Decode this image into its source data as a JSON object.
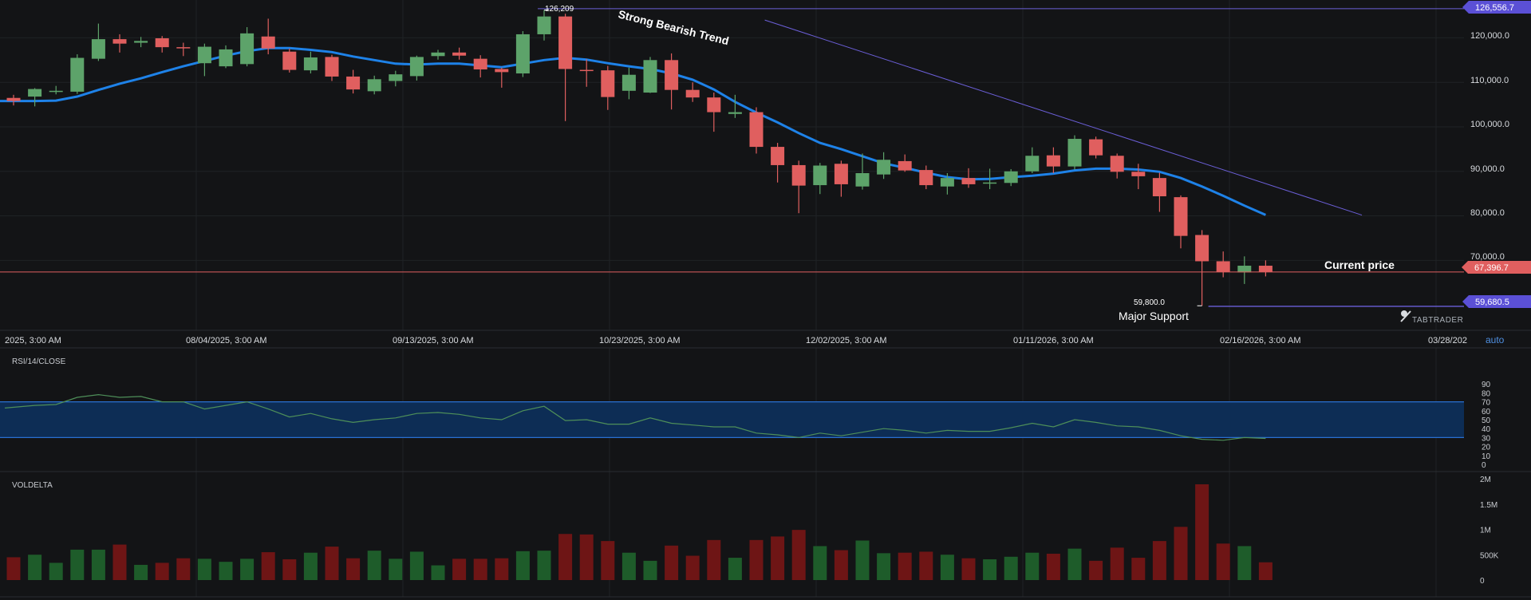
{
  "colors": {
    "background": "#131416",
    "grid": "#1f2225",
    "up": "#5da36a",
    "down": "#e05f5f",
    "ma": "#1e82e8",
    "trendline": "#6b5fd8",
    "current": "#e05f5f",
    "support": "#6b5fd8",
    "rsi_line": "#4e8f59",
    "rsi_band": "#0d2d55",
    "rsi_band_edge": "#2a6fd0",
    "vol_up": "#1e5c2a",
    "vol_down": "#6e1515"
  },
  "price_axis": {
    "ticks": [
      "120,000.0",
      "110,000.0",
      "100,000.0",
      "90,000.0",
      "80,000.0",
      "70,000.0"
    ],
    "high_badge": "126,556.7",
    "current_badge": "67,396.7",
    "support_badge": "59,680.5",
    "auto_label": "auto"
  },
  "time_axis": {
    "labels": [
      "2025, 3:00 AM",
      "08/04/2025, 3:00 AM",
      "09/13/2025, 3:00 AM",
      "10/23/2025, 3:00 AM",
      "12/02/2025, 3:00 AM",
      "01/11/2026, 3:00 AM",
      "02/16/2026, 3:00 AM",
      "03/28/202"
    ]
  },
  "annotations": {
    "trend_text": "Strong Bearish Trend",
    "current_text": "Current price",
    "support_text": "Major Support",
    "high_marker": "126,209",
    "low_marker": "59,800.0",
    "brand": "TABTRADER"
  },
  "rsi_panel": {
    "title": "RSI/14/CLOSE",
    "ticks": [
      "90",
      "80",
      "70",
      "60",
      "50",
      "40",
      "30",
      "20",
      "10",
      "0"
    ]
  },
  "vol_panel": {
    "title": "VOLDELTA",
    "ticks": [
      "2M",
      "1.5M",
      "1M",
      "500K",
      "0"
    ]
  },
  "chart_data": [
    {
      "type": "candlestick",
      "candles": [
        [
          106500,
          107200,
          104800,
          105800
        ],
        [
          106800,
          108700,
          104600,
          108500
        ],
        [
          108000,
          109200,
          107300,
          108100
        ],
        [
          107900,
          116300,
          107400,
          115500
        ],
        [
          115300,
          123200,
          114800,
          119700
        ],
        [
          119700,
          120800,
          116700,
          118700
        ],
        [
          118900,
          120200,
          117900,
          119300
        ],
        [
          119900,
          120400,
          116700,
          117900
        ],
        [
          117900,
          118900,
          115900,
          117800
        ],
        [
          114300,
          118700,
          111400,
          118000
        ],
        [
          113600,
          118300,
          113200,
          117400
        ],
        [
          114100,
          122400,
          113600,
          121000
        ],
        [
          120300,
          124300,
          116300,
          117600
        ],
        [
          116900,
          117600,
          112200,
          112800
        ],
        [
          112700,
          116900,
          112000,
          115600
        ],
        [
          115700,
          116200,
          110300,
          111300
        ],
        [
          111300,
          112800,
          107500,
          108400
        ],
        [
          108000,
          111500,
          107300,
          110700
        ],
        [
          110300,
          112600,
          109100,
          111800
        ],
        [
          111400,
          116000,
          110400,
          115700
        ],
        [
          115900,
          117300,
          115100,
          116700
        ],
        [
          116700,
          117800,
          115100,
          116000
        ],
        [
          115300,
          116100,
          111100,
          112900
        ],
        [
          113000,
          113300,
          108800,
          112300
        ],
        [
          112000,
          121500,
          111200,
          120800
        ],
        [
          120800,
          126209,
          119400,
          124800
        ],
        [
          124800,
          125400,
          101300,
          113000
        ],
        [
          112800,
          115200,
          109000,
          112700
        ],
        [
          112700,
          113700,
          103800,
          106700
        ],
        [
          108100,
          113300,
          106200,
          111700
        ],
        [
          107700,
          115700,
          107600,
          115000
        ],
        [
          115000,
          116500,
          103900,
          108300
        ],
        [
          108300,
          110000,
          105600,
          106600
        ],
        [
          106600,
          107700,
          98900,
          103300
        ],
        [
          102900,
          107200,
          102000,
          103300
        ],
        [
          103300,
          104400,
          94000,
          95500
        ],
        [
          95500,
          96400,
          87500,
          91400
        ],
        [
          91400,
          92400,
          80600,
          86800
        ],
        [
          86900,
          91900,
          84900,
          91300
        ],
        [
          91700,
          92400,
          84300,
          87100
        ],
        [
          86600,
          94000,
          85900,
          89600
        ],
        [
          89300,
          94300,
          88300,
          92600
        ],
        [
          92300,
          93800,
          89900,
          90200
        ],
        [
          90300,
          91300,
          86000,
          86900
        ],
        [
          86600,
          89600,
          84800,
          88500
        ],
        [
          88500,
          90700,
          86300,
          87100
        ],
        [
          87400,
          90600,
          86000,
          87500
        ],
        [
          87400,
          90500,
          86700,
          90000
        ],
        [
          90000,
          95400,
          89600,
          93500
        ],
        [
          93600,
          95400,
          89600,
          91100
        ],
        [
          91100,
          98100,
          90400,
          97300
        ],
        [
          97200,
          97800,
          92900,
          93600
        ],
        [
          93500,
          94000,
          88400,
          89900
        ],
        [
          89900,
          91700,
          86000,
          88900
        ],
        [
          88500,
          89700,
          80900,
          84400
        ],
        [
          84200,
          84600,
          72700,
          75500
        ],
        [
          75700,
          76800,
          59800,
          69800
        ],
        [
          69800,
          72000,
          66200,
          67400
        ],
        [
          67300,
          70900,
          64700,
          68800
        ],
        [
          68800,
          70000,
          66400,
          67396.7
        ]
      ],
      "moving_average": [
        105800,
        105800,
        105900,
        106800,
        108300,
        109700,
        110900,
        112300,
        113600,
        114800,
        116000,
        117000,
        117700,
        117700,
        117300,
        116800,
        115800,
        115000,
        114200,
        114000,
        114200,
        114200,
        113800,
        113400,
        114200,
        115000,
        115500,
        115100,
        114300,
        113600,
        113000,
        112000,
        110600,
        108400,
        105600,
        103200,
        101000,
        98600,
        96400,
        95000,
        93400,
        91800,
        90800,
        89700,
        88700,
        88200,
        88300,
        88700,
        89000,
        89500,
        90200,
        90600,
        90600,
        90400,
        89900,
        88500,
        86600,
        84500,
        82300,
        80200
      ],
      "price_range": [
        55000,
        128500
      ],
      "trendline": [
        [
          26,
          126556.7
        ],
        [
          59,
          80000
        ]
      ],
      "current_price": 67396.7,
      "support": 59680.5
    },
    {
      "type": "line",
      "name": "RSI/14/CLOSE",
      "values": [
        63,
        66,
        67,
        75,
        78,
        75,
        76,
        70,
        70,
        62,
        66,
        70,
        62,
        53,
        57,
        51,
        47,
        50,
        52,
        57,
        58,
        56,
        52,
        50,
        60,
        65,
        49,
        50,
        45,
        45,
        52,
        46,
        44,
        42,
        42,
        35,
        33,
        30,
        35,
        32,
        36,
        40,
        38,
        35,
        38,
        37,
        37,
        41,
        46,
        42,
        50,
        47,
        43,
        42,
        38,
        32,
        28,
        27,
        30,
        29
      ],
      "ylim": [
        0,
        100
      ],
      "band": [
        30,
        70
      ]
    },
    {
      "type": "bar",
      "name": "VOLDELTA",
      "values": [
        450000,
        500000,
        340000,
        600000,
        600000,
        700000,
        300000,
        340000,
        430000,
        420000,
        360000,
        420000,
        550000,
        410000,
        540000,
        660000,
        430000,
        580000,
        420000,
        560000,
        290000,
        420000,
        420000,
        430000,
        570000,
        580000,
        910000,
        900000,
        770000,
        540000,
        380000,
        680000,
        480000,
        790000,
        440000,
        790000,
        860000,
        990000,
        670000,
        590000,
        780000,
        530000,
        540000,
        560000,
        500000,
        430000,
        410000,
        460000,
        540000,
        520000,
        620000,
        380000,
        640000,
        440000,
        770000,
        1050000,
        1890000,
        720000,
        670000,
        350000
      ],
      "ylim": [
        0,
        2000000
      ]
    }
  ]
}
